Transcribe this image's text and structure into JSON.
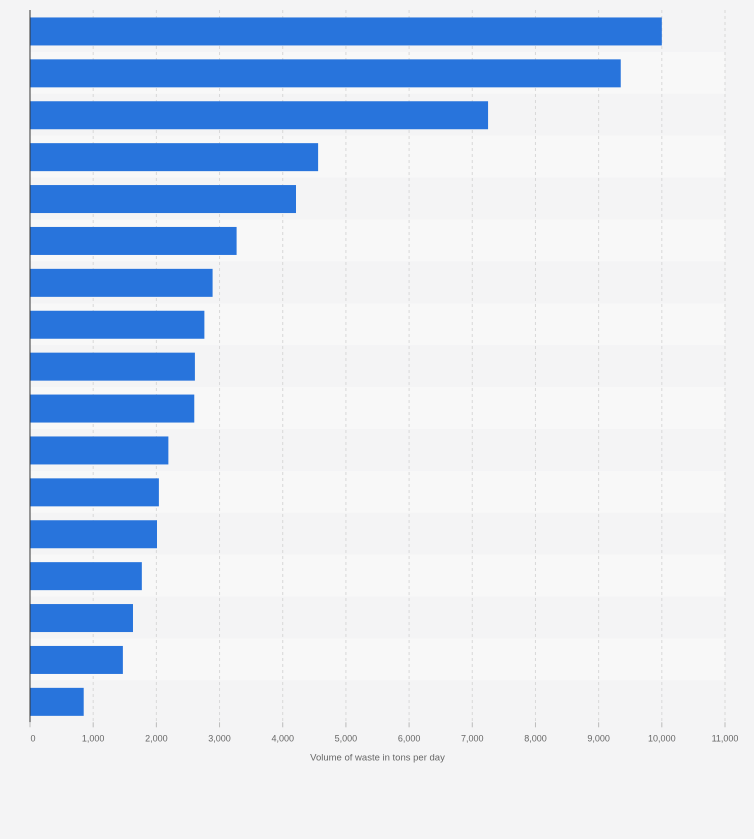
{
  "chart_data": {
    "type": "bar",
    "orientation": "horizontal",
    "title": "",
    "xlabel": "Volume of waste in tons per day",
    "ylabel": "",
    "xlim": [
      0,
      11000
    ],
    "ticks": [
      0,
      1000,
      2000,
      3000,
      4000,
      5000,
      6000,
      7000,
      8000,
      9000,
      10000,
      11000
    ],
    "tick_labels": [
      "0",
      "1,000",
      "2,000",
      "3,000",
      "4,000",
      "5,000",
      "6,000",
      "7,000",
      "8,000",
      "9,000",
      "10,000",
      "11,000"
    ],
    "values": [
      10000,
      9350,
      7250,
      4560,
      4210,
      3270,
      2890,
      2760,
      2610,
      2600,
      2190,
      2040,
      2010,
      1770,
      1630,
      1470,
      850
    ],
    "grid": true,
    "colors": {
      "bar": "#2874dc",
      "band_light": "#f8f8f8",
      "band_dark": "#f4f4f5",
      "grid": "#d8d8d8",
      "axis": "#333333",
      "text": "#666666",
      "background": "#f4f4f5"
    }
  }
}
